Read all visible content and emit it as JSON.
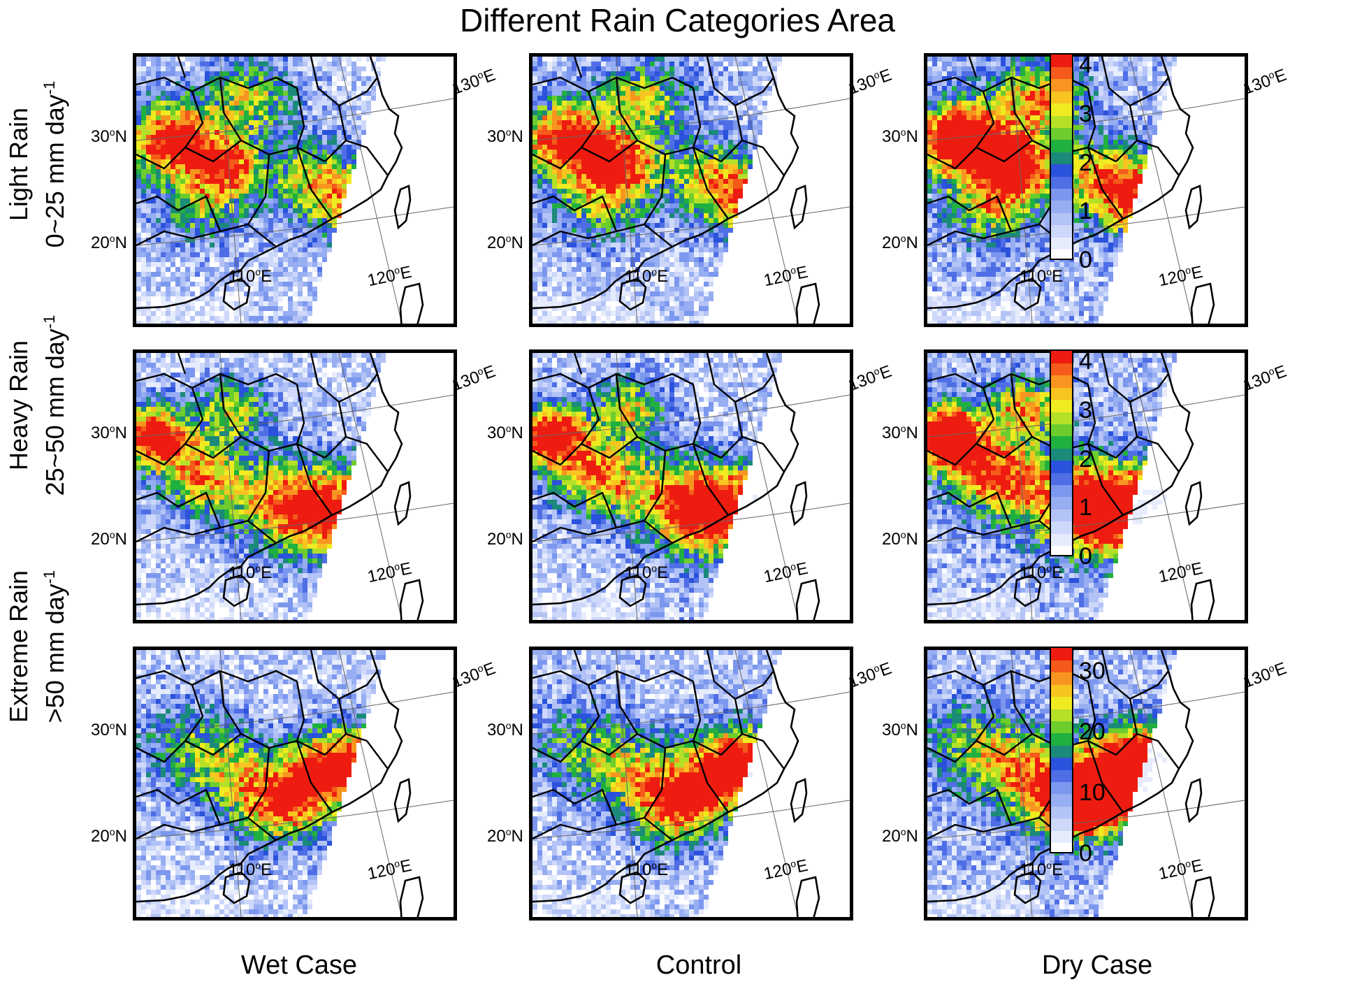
{
  "title": "Different Rain Categories Area",
  "rows": [
    {
      "label_line1": "Light Rain",
      "label_line2_prefix": "0~25 mm day",
      "label_sup": "-1"
    },
    {
      "label_line1": "Heavy Rain",
      "label_line2_prefix": "25~50 mm day",
      "label_sup": "-1"
    },
    {
      "label_line1": "Extreme Rain",
      "label_line2_prefix": ">50 mm day",
      "label_sup": "-1"
    }
  ],
  "columns": [
    "Wet Case",
    "Control",
    "Dry Case"
  ],
  "map_ticks": {
    "lat_30": {
      "num": "30",
      "deg": "o",
      "dir": "N"
    },
    "lat_20": {
      "num": "20",
      "deg": "o",
      "dir": "N"
    },
    "lon_110": {
      "num": "110",
      "deg": "o",
      "dir": "E"
    },
    "lon_120": {
      "num": "120",
      "deg": "o",
      "dir": "E"
    },
    "lon_130": {
      "num": "130",
      "deg": "o",
      "dir": "E"
    }
  },
  "colorbars": [
    {
      "ticks": [
        "4",
        "3",
        "2",
        "1",
        "0"
      ],
      "max": 4.25
    },
    {
      "ticks": [
        "4",
        "3",
        "2",
        "1",
        "0"
      ],
      "max": 4.25
    },
    {
      "ticks": [
        "30",
        "20",
        "10",
        "0"
      ],
      "max": 34
    }
  ],
  "palette": [
    "#ffffff",
    "#e6ecfc",
    "#cdd8fa",
    "#b3c3f6",
    "#97aef2",
    "#7c97ee",
    "#4f6ee6",
    "#2a52dc",
    "#1b8a7a",
    "#20b040",
    "#6ccd2c",
    "#b4e028",
    "#f0ea20",
    "#f8c420",
    "#f89520",
    "#f55a1a",
    "#ee1c10"
  ]
}
